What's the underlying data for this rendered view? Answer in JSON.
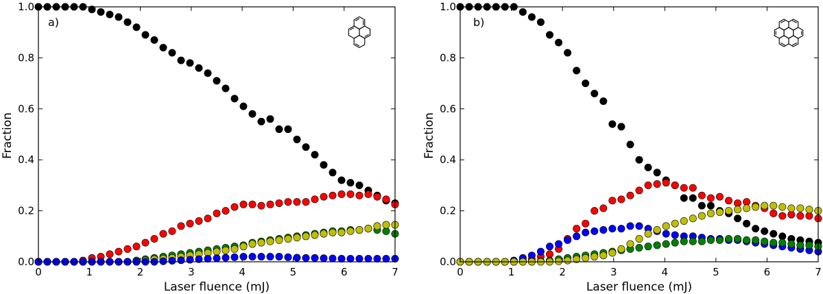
{
  "chart_data": [
    {
      "type": "scatter",
      "panel_label": "a)",
      "molecule_icon": "perylene-structure-icon",
      "xlabel": "Laser fluence (mJ)",
      "ylabel": "Fraction",
      "xlim": [
        0,
        7
      ],
      "ylim": [
        0,
        1.0
      ],
      "xticks": [
        "0",
        "1",
        "2",
        "3",
        "4",
        "5",
        "6",
        "7"
      ],
      "yticks": [
        "0.0",
        "0.2",
        "0.4",
        "0.6",
        "0.8",
        "1.0"
      ],
      "grid": false,
      "series": [
        {
          "name": "black",
          "color": "#000000",
          "x": [
            0,
            0.175,
            0.35,
            0.525,
            0.7,
            0.875,
            1.05,
            1.225,
            1.4,
            1.575,
            1.75,
            1.925,
            2.1,
            2.275,
            2.45,
            2.625,
            2.8,
            2.975,
            3.15,
            3.325,
            3.5,
            3.675,
            3.85,
            4.025,
            4.2,
            4.375,
            4.55,
            4.725,
            4.9,
            5.075,
            5.25,
            5.425,
            5.6,
            5.775,
            5.95,
            6.125,
            6.3,
            6.475,
            6.65,
            6.825,
            7.0
          ],
          "y": [
            1.0,
            1.0,
            1.0,
            1.0,
            1.0,
            1.0,
            0.99,
            0.98,
            0.97,
            0.96,
            0.94,
            0.92,
            0.89,
            0.87,
            0.84,
            0.82,
            0.79,
            0.78,
            0.76,
            0.74,
            0.71,
            0.68,
            0.64,
            0.61,
            0.58,
            0.55,
            0.56,
            0.52,
            0.52,
            0.48,
            0.45,
            0.42,
            0.38,
            0.35,
            0.32,
            0.31,
            0.3,
            0.28,
            0.26,
            0.24,
            0.23
          ]
        },
        {
          "name": "red",
          "color": "#ff0000",
          "x": [
            0,
            0.175,
            0.35,
            0.525,
            0.7,
            0.875,
            1.05,
            1.225,
            1.4,
            1.575,
            1.75,
            1.925,
            2.1,
            2.275,
            2.45,
            2.625,
            2.8,
            2.975,
            3.15,
            3.325,
            3.5,
            3.675,
            3.85,
            4.025,
            4.2,
            4.375,
            4.55,
            4.725,
            4.9,
            5.075,
            5.25,
            5.425,
            5.6,
            5.775,
            5.95,
            6.125,
            6.3,
            6.475,
            6.65,
            6.825,
            7.0
          ],
          "y": [
            0.0,
            0.0,
            0.0,
            0.0,
            0.0,
            0.005,
            0.015,
            0.02,
            0.03,
            0.04,
            0.05,
            0.06,
            0.075,
            0.09,
            0.11,
            0.12,
            0.14,
            0.15,
            0.16,
            0.17,
            0.19,
            0.2,
            0.215,
            0.225,
            0.225,
            0.22,
            0.225,
            0.23,
            0.235,
            0.235,
            0.235,
            0.245,
            0.255,
            0.26,
            0.265,
            0.265,
            0.26,
            0.265,
            0.255,
            0.245,
            0.225
          ]
        },
        {
          "name": "green",
          "color": "#008000",
          "x": [
            0,
            0.175,
            0.35,
            0.525,
            0.7,
            0.875,
            1.05,
            1.225,
            1.4,
            1.575,
            1.75,
            1.925,
            2.1,
            2.275,
            2.45,
            2.625,
            2.8,
            2.975,
            3.15,
            3.325,
            3.5,
            3.675,
            3.85,
            4.025,
            4.2,
            4.375,
            4.55,
            4.725,
            4.9,
            5.075,
            5.25,
            5.425,
            5.6,
            5.775,
            5.95,
            6.125,
            6.3,
            6.475,
            6.65,
            6.825,
            7.0
          ],
          "y": [
            0.0,
            0.0,
            0.0,
            0.0,
            0.0,
            0.0,
            0.0,
            0.0,
            0.0,
            0.0,
            0.0,
            0.005,
            0.01,
            0.015,
            0.02,
            0.025,
            0.03,
            0.035,
            0.04,
            0.045,
            0.05,
            0.055,
            0.06,
            0.065,
            0.075,
            0.08,
            0.085,
            0.09,
            0.095,
            0.1,
            0.105,
            0.11,
            0.115,
            0.12,
            0.12,
            0.125,
            0.125,
            0.13,
            0.125,
            0.12,
            0.11
          ]
        },
        {
          "name": "yellow",
          "color": "#bfbf00",
          "x": [
            0,
            0.175,
            0.35,
            0.525,
            0.7,
            0.875,
            1.05,
            1.225,
            1.4,
            1.575,
            1.75,
            1.925,
            2.1,
            2.275,
            2.45,
            2.625,
            2.8,
            2.975,
            3.15,
            3.325,
            3.5,
            3.675,
            3.85,
            4.025,
            4.2,
            4.375,
            4.55,
            4.725,
            4.9,
            5.075,
            5.25,
            5.425,
            5.6,
            5.775,
            5.95,
            6.125,
            6.3,
            6.475,
            6.65,
            6.825,
            7.0
          ],
          "y": [
            0.0,
            0.0,
            0.0,
            0.0,
            0.0,
            0.0,
            0.0,
            0.0,
            0.0,
            0.0,
            0.0,
            0.0,
            0.005,
            0.01,
            0.012,
            0.015,
            0.02,
            0.025,
            0.03,
            0.035,
            0.04,
            0.045,
            0.05,
            0.06,
            0.07,
            0.075,
            0.08,
            0.085,
            0.09,
            0.095,
            0.1,
            0.105,
            0.11,
            0.115,
            0.115,
            0.12,
            0.125,
            0.13,
            0.14,
            0.145,
            0.145
          ]
        },
        {
          "name": "blue",
          "color": "#0000ff",
          "x": [
            0,
            0.175,
            0.35,
            0.525,
            0.7,
            0.875,
            1.05,
            1.225,
            1.4,
            1.575,
            1.75,
            1.925,
            2.1,
            2.275,
            2.45,
            2.625,
            2.8,
            2.975,
            3.15,
            3.325,
            3.5,
            3.675,
            3.85,
            4.025,
            4.2,
            4.375,
            4.55,
            4.725,
            4.9,
            5.075,
            5.25,
            5.425,
            5.6,
            5.775,
            5.95,
            6.125,
            6.3,
            6.475,
            6.65,
            6.825,
            7.0
          ],
          "y": [
            0.0,
            0.0,
            0.0,
            0.0,
            0.0,
            0.0,
            0.0,
            0.0,
            0.0,
            0.0,
            0.0,
            0.0,
            0.0,
            0.0,
            0.002,
            0.004,
            0.006,
            0.008,
            0.01,
            0.012,
            0.014,
            0.016,
            0.018,
            0.02,
            0.02,
            0.02,
            0.02,
            0.02,
            0.018,
            0.016,
            0.015,
            0.015,
            0.014,
            0.013,
            0.012,
            0.012,
            0.012,
            0.012,
            0.012,
            0.012,
            0.012
          ]
        }
      ]
    },
    {
      "type": "scatter",
      "panel_label": "b)",
      "molecule_icon": "coronene-structure-icon",
      "xlabel": "Laser fluence (mJ)",
      "ylabel": "Fraction",
      "xlim": [
        0,
        7
      ],
      "ylim": [
        0,
        1.0
      ],
      "xticks": [
        "0",
        "1",
        "2",
        "3",
        "4",
        "5",
        "6",
        "7"
      ],
      "yticks": [
        "0.0",
        "0.2",
        "0.4",
        "0.6",
        "0.8",
        "1.0"
      ],
      "grid": false,
      "series": [
        {
          "name": "black",
          "color": "#000000",
          "x": [
            0,
            0.175,
            0.35,
            0.525,
            0.7,
            0.875,
            1.05,
            1.225,
            1.4,
            1.575,
            1.75,
            1.925,
            2.1,
            2.275,
            2.45,
            2.625,
            2.8,
            2.975,
            3.15,
            3.325,
            3.5,
            3.675,
            3.85,
            4.025,
            4.2,
            4.375,
            4.55,
            4.725,
            4.9,
            5.075,
            5.25,
            5.425,
            5.6,
            5.775,
            5.95,
            6.125,
            6.3,
            6.475,
            6.65,
            6.825,
            7.0
          ],
          "y": [
            1.0,
            1.0,
            1.0,
            1.0,
            1.0,
            1.0,
            1.0,
            0.98,
            0.96,
            0.94,
            0.89,
            0.86,
            0.82,
            0.75,
            0.7,
            0.66,
            0.63,
            0.54,
            0.53,
            0.46,
            0.4,
            0.37,
            0.35,
            0.32,
            0.3,
            0.25,
            0.25,
            0.22,
            0.22,
            0.2,
            0.19,
            0.17,
            0.15,
            0.13,
            0.12,
            0.11,
            0.1,
            0.09,
            0.085,
            0.08,
            0.075
          ]
        },
        {
          "name": "red",
          "color": "#ff0000",
          "x": [
            0,
            0.175,
            0.35,
            0.525,
            0.7,
            0.875,
            1.05,
            1.225,
            1.4,
            1.575,
            1.75,
            1.925,
            2.1,
            2.275,
            2.45,
            2.625,
            2.8,
            2.975,
            3.15,
            3.325,
            3.5,
            3.675,
            3.85,
            4.025,
            4.2,
            4.375,
            4.55,
            4.725,
            4.9,
            5.075,
            5.25,
            5.425,
            5.6,
            5.775,
            5.95,
            6.125,
            6.3,
            6.475,
            6.65,
            6.825,
            7.0
          ],
          "y": [
            0.0,
            0.0,
            0.0,
            0.0,
            0.0,
            0.0,
            0.0,
            0.005,
            0.01,
            0.02,
            0.03,
            0.05,
            0.09,
            0.13,
            0.15,
            0.2,
            0.21,
            0.24,
            0.245,
            0.26,
            0.28,
            0.3,
            0.305,
            0.31,
            0.3,
            0.29,
            0.29,
            0.26,
            0.25,
            0.255,
            0.24,
            0.23,
            0.235,
            0.22,
            0.21,
            0.19,
            0.18,
            0.185,
            0.18,
            0.18,
            0.17
          ]
        },
        {
          "name": "blue",
          "color": "#0000ff",
          "x": [
            0,
            0.175,
            0.35,
            0.525,
            0.7,
            0.875,
            1.05,
            1.225,
            1.4,
            1.575,
            1.75,
            1.925,
            2.1,
            2.275,
            2.45,
            2.625,
            2.8,
            2.975,
            3.15,
            3.325,
            3.5,
            3.675,
            3.85,
            4.025,
            4.2,
            4.375,
            4.55,
            4.725,
            4.9,
            5.075,
            5.25,
            5.425,
            5.6,
            5.775,
            5.95,
            6.125,
            6.3,
            6.475,
            6.65,
            6.825,
            7.0
          ],
          "y": [
            0.0,
            0.0,
            0.0,
            0.0,
            0.0,
            0.0,
            0.005,
            0.015,
            0.025,
            0.04,
            0.06,
            0.07,
            0.085,
            0.1,
            0.115,
            0.12,
            0.125,
            0.13,
            0.13,
            0.14,
            0.14,
            0.13,
            0.12,
            0.11,
            0.105,
            0.1,
            0.1,
            0.095,
            0.09,
            0.09,
            0.085,
            0.085,
            0.08,
            0.075,
            0.07,
            0.065,
            0.06,
            0.055,
            0.05,
            0.045,
            0.04
          ]
        },
        {
          "name": "green",
          "color": "#008000",
          "x": [
            0,
            0.175,
            0.35,
            0.525,
            0.7,
            0.875,
            1.05,
            1.225,
            1.4,
            1.575,
            1.75,
            1.925,
            2.1,
            2.275,
            2.45,
            2.625,
            2.8,
            2.975,
            3.15,
            3.325,
            3.5,
            3.675,
            3.85,
            4.025,
            4.2,
            4.375,
            4.55,
            4.725,
            4.9,
            5.075,
            5.25,
            5.425,
            5.6,
            5.775,
            5.95,
            6.125,
            6.3,
            6.475,
            6.65,
            6.825,
            7.0
          ],
          "y": [
            0.0,
            0.0,
            0.0,
            0.0,
            0.0,
            0.0,
            0.0,
            0.0,
            0.0,
            0.002,
            0.005,
            0.01,
            0.015,
            0.02,
            0.025,
            0.03,
            0.035,
            0.04,
            0.045,
            0.05,
            0.055,
            0.06,
            0.065,
            0.07,
            0.075,
            0.08,
            0.08,
            0.08,
            0.085,
            0.085,
            0.09,
            0.09,
            0.085,
            0.085,
            0.08,
            0.075,
            0.075,
            0.07,
            0.065,
            0.065,
            0.06
          ]
        },
        {
          "name": "yellow",
          "color": "#bfbf00",
          "x": [
            0,
            0.175,
            0.35,
            0.525,
            0.7,
            0.875,
            1.05,
            1.225,
            1.4,
            1.575,
            1.75,
            1.925,
            2.1,
            2.275,
            2.45,
            2.625,
            2.8,
            2.975,
            3.15,
            3.325,
            3.5,
            3.675,
            3.85,
            4.025,
            4.2,
            4.375,
            4.55,
            4.725,
            4.9,
            5.075,
            5.25,
            5.425,
            5.6,
            5.775,
            5.95,
            6.125,
            6.3,
            6.475,
            6.65,
            6.825,
            7.0
          ],
          "y": [
            0.0,
            0.0,
            0.0,
            0.0,
            0.0,
            0.0,
            0.0,
            0.0,
            0.0,
            0.0,
            0.0,
            0.002,
            0.005,
            0.01,
            0.015,
            0.02,
            0.025,
            0.035,
            0.05,
            0.07,
            0.09,
            0.11,
            0.125,
            0.14,
            0.15,
            0.16,
            0.17,
            0.18,
            0.19,
            0.195,
            0.2,
            0.205,
            0.21,
            0.215,
            0.22,
            0.22,
            0.215,
            0.21,
            0.21,
            0.205,
            0.2
          ]
        }
      ]
    }
  ]
}
